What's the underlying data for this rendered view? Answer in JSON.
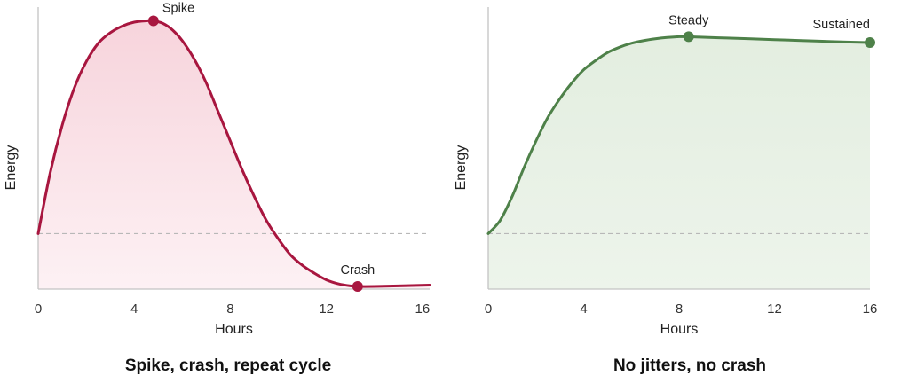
{
  "chart_data": [
    {
      "type": "area",
      "caption": "Spike, crash, repeat cycle",
      "xlabel": "Hours",
      "ylabel": "Energy",
      "xlim": [
        0,
        16.3
      ],
      "ylim": [
        0,
        10
      ],
      "xticks": [
        0,
        4,
        8,
        12,
        16
      ],
      "baseline": 2.1,
      "color": "#a8163f",
      "fill_top": "#f7d4dc",
      "fill_bottom": "#fdf1f4",
      "series": [
        {
          "x": [
            0,
            0.5,
            1,
            1.5,
            2,
            2.5,
            3,
            3.5,
            4,
            4.5,
            4.8,
            5.2,
            5.6,
            6,
            6.5,
            7,
            7.5,
            8,
            8.5,
            9,
            9.5,
            10,
            10.5,
            11,
            11.5,
            12,
            12.5,
            13,
            13.3,
            14,
            15,
            16.3
          ],
          "y": [
            2.1,
            4.4,
            6.2,
            7.6,
            8.6,
            9.3,
            9.7,
            9.95,
            10.1,
            10.15,
            10.15,
            10.05,
            9.8,
            9.4,
            8.7,
            7.8,
            6.7,
            5.6,
            4.5,
            3.5,
            2.6,
            1.9,
            1.3,
            0.9,
            0.6,
            0.35,
            0.2,
            0.12,
            0.1,
            0.1,
            0.12,
            0.15
          ]
        }
      ],
      "annotations": [
        {
          "label": "Spike",
          "x": 4.8,
          "y": 10.15
        },
        {
          "label": "Crash",
          "x": 13.3,
          "y": 0.1
        }
      ]
    },
    {
      "type": "area",
      "caption": "No jitters, no crash",
      "xlabel": "Hours",
      "ylabel": "Energy",
      "xlim": [
        0,
        16
      ],
      "ylim": [
        0,
        10
      ],
      "xticks": [
        0,
        4,
        8,
        12,
        16
      ],
      "baseline": 2.1,
      "color": "#4e8149",
      "fill_top": "#e3eee0",
      "fill_bottom": "#edf4eb",
      "series": [
        {
          "x": [
            0,
            0.5,
            1,
            1.5,
            2,
            2.5,
            3,
            3.5,
            4,
            4.5,
            5,
            5.5,
            6,
            6.5,
            7,
            7.5,
            8,
            8.4,
            9,
            10,
            11,
            12,
            13,
            14,
            15,
            16
          ],
          "y": [
            2.1,
            2.6,
            3.5,
            4.6,
            5.6,
            6.5,
            7.2,
            7.8,
            8.3,
            8.65,
            8.95,
            9.15,
            9.3,
            9.4,
            9.47,
            9.52,
            9.55,
            9.55,
            9.53,
            9.5,
            9.47,
            9.44,
            9.41,
            9.38,
            9.35,
            9.33
          ]
        }
      ],
      "annotations": [
        {
          "label": "Steady",
          "x": 8.4,
          "y": 9.55
        },
        {
          "label": "Sustained",
          "x": 16,
          "y": 9.33
        }
      ]
    }
  ]
}
